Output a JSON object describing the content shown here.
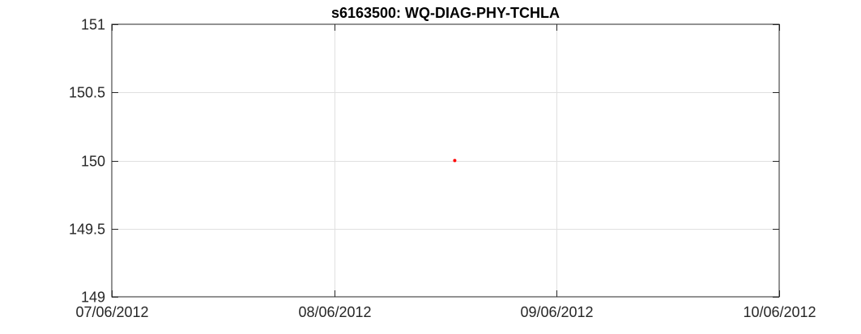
{
  "chart_data": {
    "type": "scatter",
    "title": "s6163500: WQ-DIAG-PHY-TCHLA",
    "xlabel": "",
    "ylabel": "",
    "x_axis_type": "date",
    "xlim": [
      "2012-06-07",
      "2012-06-10"
    ],
    "ylim": [
      149,
      151
    ],
    "x_ticks": [
      {
        "date": "2012-06-07",
        "label": "07/06/2012"
      },
      {
        "date": "2012-06-08",
        "label": "08/06/2012"
      },
      {
        "date": "2012-06-09",
        "label": "09/06/2012"
      },
      {
        "date": "2012-06-10",
        "label": "10/06/2012"
      }
    ],
    "y_ticks": [
      {
        "value": 149,
        "label": "149"
      },
      {
        "value": 149.5,
        "label": "149.5"
      },
      {
        "value": 150,
        "label": "150"
      },
      {
        "value": 150.5,
        "label": "150.5"
      },
      {
        "value": 151,
        "label": "151"
      }
    ],
    "grid": true,
    "series": [
      {
        "color": "#ff0000",
        "points": [
          {
            "x": "2012-06-08 13:00",
            "y": 150
          }
        ]
      }
    ]
  }
}
